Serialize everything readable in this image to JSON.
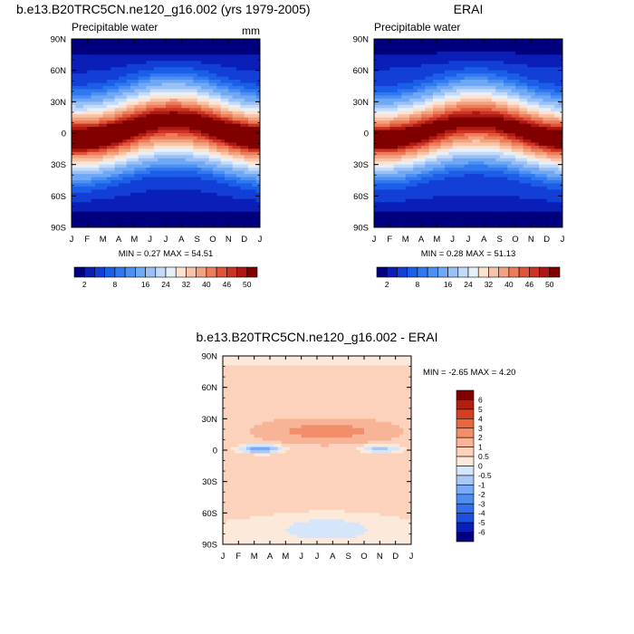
{
  "chart_data": [
    {
      "type": "heatmap",
      "title": "b.e13.B20TRC5CN.ne120_g16.002 (yrs 1979-2005)",
      "subtitle_left": "Precipitable water",
      "units": "mm",
      "x_ticks": [
        "J",
        "F",
        "M",
        "A",
        "M",
        "J",
        "J",
        "A",
        "S",
        "O",
        "N",
        "D",
        "J"
      ],
      "y_ticks": [
        "90N",
        "60N",
        "30N",
        "0",
        "30S",
        "60S",
        "90S"
      ],
      "ylim": [
        -90,
        90
      ],
      "stats": "MIN =  0.27 MAX =  54.51",
      "min": 0.27,
      "max": 54.51,
      "colorbar": {
        "labels": [
          "2",
          "8",
          "16",
          "24",
          "32",
          "40",
          "46",
          "50"
        ],
        "levels": [
          2,
          4,
          6,
          8,
          10,
          12,
          16,
          20,
          24,
          28,
          32,
          36,
          40,
          44,
          46,
          48,
          50
        ],
        "colors": [
          "#00007f",
          "#0a1fb8",
          "#123fd6",
          "#1b5ee8",
          "#2f78f0",
          "#4d90f3",
          "#6fa8f5",
          "#99c0f7",
          "#c3daf9",
          "#e7eff8",
          "#fde2cf",
          "#f9c3a8",
          "#f3a27f",
          "#ec7d58",
          "#e0553a",
          "#cc3322",
          "#ad1812",
          "#800000"
        ]
      },
      "field": "model"
    },
    {
      "type": "heatmap",
      "title": "ERAI",
      "subtitle_left": "Precipitable water",
      "x_ticks": [
        "J",
        "F",
        "M",
        "A",
        "M",
        "J",
        "J",
        "A",
        "S",
        "O",
        "N",
        "D",
        "J"
      ],
      "y_ticks": [
        "90N",
        "60N",
        "30N",
        "0",
        "30S",
        "60S",
        "90S"
      ],
      "ylim": [
        -90,
        90
      ],
      "stats": "MIN =  0.28 MAX =  51.13",
      "min": 0.28,
      "max": 51.13,
      "colorbar": {
        "labels": [
          "2",
          "8",
          "16",
          "24",
          "32",
          "40",
          "46",
          "50"
        ],
        "levels": [
          2,
          4,
          6,
          8,
          10,
          12,
          16,
          20,
          24,
          28,
          32,
          36,
          40,
          44,
          46,
          48,
          50
        ],
        "colors": [
          "#00007f",
          "#0a1fb8",
          "#123fd6",
          "#1b5ee8",
          "#2f78f0",
          "#4d90f3",
          "#6fa8f5",
          "#99c0f7",
          "#c3daf9",
          "#e7eff8",
          "#fde2cf",
          "#f9c3a8",
          "#f3a27f",
          "#ec7d58",
          "#e0553a",
          "#cc3322",
          "#ad1812",
          "#800000"
        ]
      },
      "field": "obs"
    },
    {
      "type": "heatmap",
      "title": "b.e13.B20TRC5CN.ne120_g16.002 - ERAI",
      "x_ticks": [
        "J",
        "F",
        "M",
        "A",
        "M",
        "J",
        "J",
        "A",
        "S",
        "O",
        "N",
        "D",
        "J"
      ],
      "y_ticks": [
        "90N",
        "60N",
        "30N",
        "0",
        "30S",
        "60S",
        "90S"
      ],
      "ylim": [
        -90,
        90
      ],
      "stats": "MIN =  -2.65 MAX =   4.20",
      "min": -2.65,
      "max": 4.2,
      "colorbar": {
        "labels": [
          "6",
          "5",
          "4",
          "3",
          "2",
          "1",
          "0.5",
          "0",
          "-0.5",
          "-1",
          "-2",
          "-3",
          "-4",
          "-5",
          "-6"
        ],
        "levels": [
          -6,
          -5,
          -4,
          -3,
          -2,
          -1,
          -0.5,
          0,
          0.5,
          1,
          2,
          3,
          4,
          5,
          6
        ],
        "colors": [
          "#00007f",
          "#0a1fb8",
          "#1a4fe0",
          "#2f6ff0",
          "#4d8ef3",
          "#7aaaf5",
          "#a9c8f8",
          "#d5e6fb",
          "#fde9d9",
          "#fcd2bc",
          "#f8b496",
          "#f28f6b",
          "#e9663f",
          "#d33f22",
          "#b0200f",
          "#800000"
        ]
      },
      "field": "diff"
    }
  ]
}
